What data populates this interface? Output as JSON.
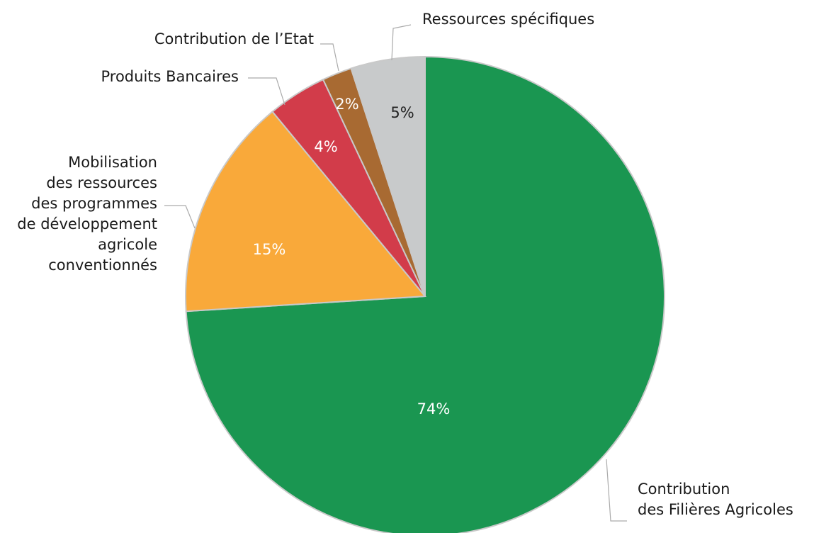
{
  "chart_data": {
    "type": "pie",
    "categories": [
      "Contribution\ndes Filières Agricoles",
      "Mobilisation\ndes ressources\ndes programmes\nde développement\nagricole\nconventionnés",
      "Produits Bancaires",
      "Contribution de l’Etat",
      "Ressources spécifiques"
    ],
    "values": [
      74,
      15,
      4,
      2,
      5
    ],
    "value_labels": [
      "74%",
      "15%",
      "4%",
      "2%",
      "5%"
    ],
    "colors": [
      "#1a9651",
      "#f9a93a",
      "#d23c4a",
      "#a86a32",
      "#c8cacb"
    ]
  }
}
